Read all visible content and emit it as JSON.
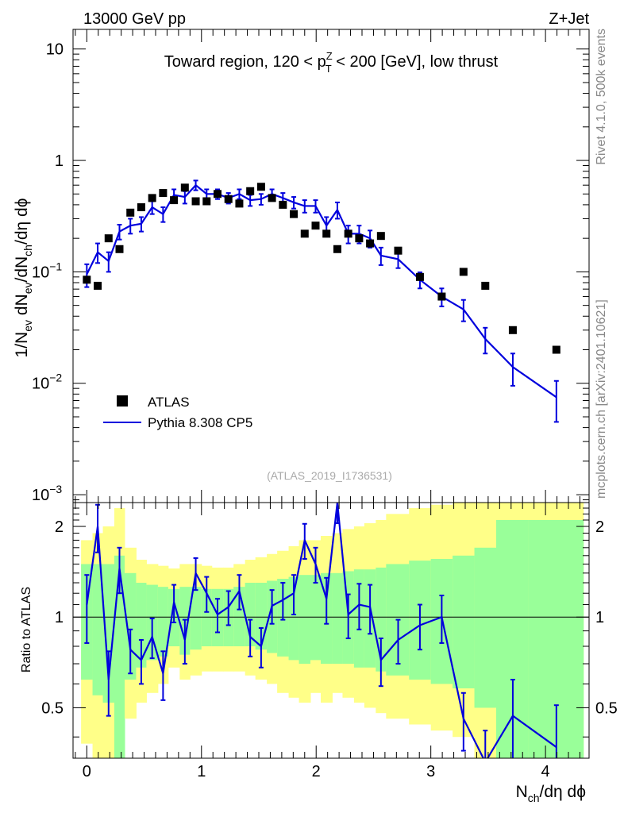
{
  "header": {
    "energy": "13000 GeV pp",
    "process": "Z+Jet"
  },
  "side_labels": {
    "rivet": "Rivet 4.1.0,  500k events",
    "site": "mcplots.cern.ch [arXiv:2401.10621]"
  },
  "chart_data": [
    {
      "type": "scatter",
      "panel": "main",
      "title": {
        "pre": "Toward region, 120 < p",
        "sup": "Z",
        "sub": "T",
        "post": " < 200 [GeV], low thrust"
      },
      "ylabel": "1/N_ev dN_ev/dN_ch/dη dϕ",
      "yscale": "log",
      "ylim": [
        0.00085,
        15
      ],
      "xlim": [
        -0.12,
        4.38
      ],
      "yticks": [
        {
          "value": 0.001,
          "base": "10",
          "exp": "−3"
        },
        {
          "value": 0.01,
          "base": "10",
          "exp": "−2"
        },
        {
          "value": 0.1,
          "base": "10",
          "exp": "−1"
        },
        {
          "value": 1,
          "base": "1",
          "exp": ""
        },
        {
          "value": 10,
          "base": "10",
          "exp": ""
        }
      ],
      "watermark": "(ATLAS_2019_I1736531)",
      "legend": [
        {
          "label": "ATLAS",
          "marker": "square",
          "color": "#000000"
        },
        {
          "label": "Pythia 8.308 CP5",
          "marker": "line",
          "color": "#0000dd"
        }
      ],
      "series": [
        {
          "name": "ATLAS",
          "x": [
            0.0,
            0.095,
            0.19,
            0.285,
            0.38,
            0.475,
            0.57,
            0.665,
            0.76,
            0.855,
            0.95,
            1.045,
            1.14,
            1.235,
            1.33,
            1.425,
            1.52,
            1.615,
            1.71,
            1.805,
            1.9,
            1.995,
            2.09,
            2.185,
            2.28,
            2.375,
            2.47,
            2.565,
            2.715,
            2.905,
            3.095,
            3.285,
            3.475,
            3.715,
            4.095
          ],
          "y": [
            0.085,
            0.075,
            0.2,
            0.16,
            0.34,
            0.38,
            0.46,
            0.51,
            0.44,
            0.57,
            0.43,
            0.43,
            0.5,
            0.45,
            0.41,
            0.53,
            0.58,
            0.46,
            0.4,
            0.33,
            0.22,
            0.26,
            0.22,
            0.16,
            0.22,
            0.2,
            0.18,
            0.21,
            0.155,
            0.09,
            0.06,
            0.1,
            0.075,
            0.03,
            0.02
          ]
        },
        {
          "name": "Pythia 8.308 CP5",
          "x": [
            0.0,
            0.095,
            0.19,
            0.285,
            0.38,
            0.475,
            0.57,
            0.665,
            0.76,
            0.855,
            0.95,
            1.045,
            1.14,
            1.235,
            1.33,
            1.425,
            1.52,
            1.615,
            1.71,
            1.805,
            1.9,
            1.995,
            2.09,
            2.185,
            2.28,
            2.375,
            2.47,
            2.565,
            2.715,
            2.905,
            3.095,
            3.285,
            3.475,
            3.715,
            4.095
          ],
          "y": [
            0.095,
            0.15,
            0.125,
            0.23,
            0.26,
            0.27,
            0.38,
            0.33,
            0.49,
            0.47,
            0.6,
            0.5,
            0.5,
            0.46,
            0.5,
            0.44,
            0.45,
            0.5,
            0.46,
            0.42,
            0.39,
            0.39,
            0.26,
            0.36,
            0.22,
            0.22,
            0.2,
            0.14,
            0.13,
            0.085,
            0.06,
            0.046,
            0.025,
            0.014,
            0.0075
          ],
          "yerr": [
            0.022,
            0.03,
            0.025,
            0.035,
            0.04,
            0.04,
            0.05,
            0.05,
            0.06,
            0.06,
            0.06,
            0.05,
            0.05,
            0.05,
            0.05,
            0.05,
            0.05,
            0.05,
            0.05,
            0.05,
            0.05,
            0.05,
            0.05,
            0.06,
            0.04,
            0.04,
            0.035,
            0.025,
            0.022,
            0.014,
            0.011,
            0.01,
            0.0065,
            0.0045,
            0.003
          ]
        }
      ]
    },
    {
      "type": "line",
      "panel": "ratio",
      "ylabel": "Ratio to ATLAS",
      "xlabel": "N_ch/dη dϕ",
      "yscale": "log",
      "ylim": [
        0.34,
        2.4
      ],
      "yticks": [
        {
          "value": 0.5,
          "label": "0.5"
        },
        {
          "value": 1,
          "label": "1"
        },
        {
          "value": 2,
          "label": "2"
        }
      ],
      "xticks": [
        {
          "value": 0,
          "label": "0"
        },
        {
          "value": 1,
          "label": "1"
        },
        {
          "value": 2,
          "label": "2"
        },
        {
          "value": 3,
          "label": "3"
        },
        {
          "value": 4,
          "label": "4"
        }
      ],
      "bands": {
        "edges": [
          -0.05,
          0.05,
          0.14,
          0.24,
          0.33,
          0.43,
          0.52,
          0.62,
          0.71,
          0.81,
          0.9,
          1.0,
          1.09,
          1.19,
          1.28,
          1.38,
          1.47,
          1.57,
          1.66,
          1.76,
          1.85,
          1.95,
          2.04,
          2.14,
          2.23,
          2.33,
          2.42,
          2.52,
          2.61,
          2.81,
          3.0,
          3.19,
          3.38,
          3.57,
          3.85,
          4.33
        ],
        "green_lo": [
          0.62,
          0.55,
          0.52,
          0.34,
          0.62,
          0.68,
          0.72,
          0.74,
          0.8,
          0.75,
          0.78,
          0.8,
          0.8,
          0.8,
          0.8,
          0.8,
          0.78,
          0.76,
          0.74,
          0.72,
          0.7,
          0.72,
          0.7,
          0.7,
          0.7,
          0.68,
          0.68,
          0.66,
          0.64,
          0.62,
          0.6,
          0.58,
          0.5,
          0.34,
          0.34
        ],
        "green_hi": [
          1.5,
          1.5,
          1.5,
          1.6,
          1.4,
          1.3,
          1.28,
          1.26,
          1.24,
          1.26,
          1.26,
          1.24,
          1.24,
          1.24,
          1.26,
          1.3,
          1.3,
          1.32,
          1.34,
          1.36,
          1.38,
          1.38,
          1.4,
          1.4,
          1.42,
          1.44,
          1.44,
          1.46,
          1.5,
          1.54,
          1.56,
          1.6,
          1.7,
          2.1,
          2.1
        ],
        "yellow_lo": [
          0.38,
          0.34,
          0.34,
          0.34,
          0.46,
          0.52,
          0.56,
          0.6,
          0.68,
          0.62,
          0.64,
          0.66,
          0.66,
          0.66,
          0.66,
          0.64,
          0.62,
          0.6,
          0.56,
          0.54,
          0.52,
          0.56,
          0.52,
          0.56,
          0.54,
          0.52,
          0.5,
          0.48,
          0.46,
          0.44,
          0.42,
          0.4,
          0.34,
          0.34,
          0.34
        ],
        "yellow_hi": [
          1.8,
          1.9,
          2.0,
          2.3,
          1.7,
          1.55,
          1.5,
          1.48,
          1.45,
          1.5,
          1.5,
          1.48,
          1.46,
          1.46,
          1.5,
          1.55,
          1.58,
          1.62,
          1.66,
          1.72,
          1.8,
          1.8,
          1.86,
          1.9,
          1.96,
          2.0,
          2.05,
          2.1,
          2.2,
          2.3,
          2.36,
          2.4,
          2.4,
          2.4,
          2.4
        ]
      },
      "series": [
        {
          "name": "Pythia 8.308 CP5 / ATLAS",
          "x": [
            0.0,
            0.095,
            0.19,
            0.285,
            0.38,
            0.475,
            0.57,
            0.665,
            0.76,
            0.855,
            0.95,
            1.045,
            1.14,
            1.235,
            1.33,
            1.425,
            1.52,
            1.615,
            1.71,
            1.805,
            1.9,
            1.995,
            2.09,
            2.185,
            2.28,
            2.375,
            2.47,
            2.565,
            2.715,
            2.905,
            3.095,
            3.285,
            3.475,
            3.715,
            4.095
          ],
          "y": [
            1.1,
            2.0,
            0.62,
            1.45,
            0.78,
            0.72,
            0.86,
            0.65,
            1.12,
            0.84,
            1.4,
            1.2,
            1.02,
            1.08,
            1.22,
            0.86,
            0.8,
            1.09,
            1.14,
            1.2,
            1.8,
            1.5,
            1.15,
            2.4,
            1.02,
            1.1,
            1.08,
            0.72,
            0.84,
            0.94,
            1.0,
            0.46,
            0.33,
            0.47,
            0.37
          ],
          "yerr": [
            0.28,
            0.36,
            0.15,
            0.25,
            0.13,
            0.12,
            0.13,
            0.12,
            0.16,
            0.14,
            0.17,
            0.16,
            0.13,
            0.14,
            0.16,
            0.12,
            0.12,
            0.14,
            0.16,
            0.18,
            0.24,
            0.2,
            0.2,
            0.35,
            0.17,
            0.19,
            0.2,
            0.13,
            0.14,
            0.16,
            0.18,
            0.1,
            0.09,
            0.15,
            0.14
          ]
        }
      ],
      "reference_line": 1
    }
  ]
}
